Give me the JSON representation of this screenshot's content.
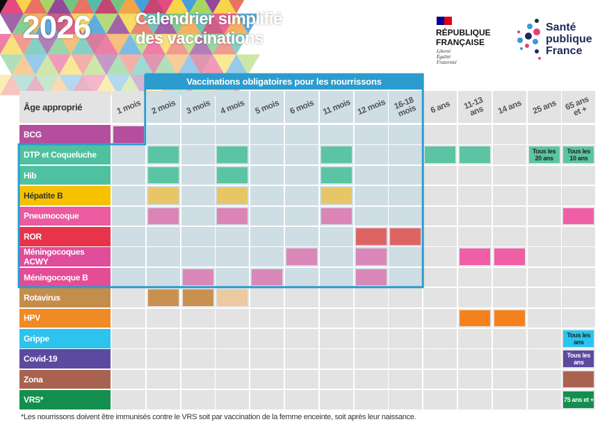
{
  "header": {
    "year": "2026",
    "title_lines": [
      "Calendrier simplifié",
      "des vaccinations"
    ]
  },
  "logos": {
    "republique": [
      "RÉPUBLIQUE",
      "FRANÇAISE"
    ],
    "motto": [
      "Liberté",
      "Égalité",
      "Fraternité"
    ],
    "spf": [
      "Santé",
      "publique",
      "France"
    ]
  },
  "table": {
    "banner": "Vaccinations obligatoires pour les nourrissons",
    "age_header": "Âge approprié",
    "columns": [
      "1 mois",
      "2 mois",
      "3 mois",
      "4 mois",
      "5 mois",
      "6 mois",
      "11 mois",
      "12 mois",
      "16-18 mois",
      "6 ans",
      "11-13 ans",
      "14 ans",
      "25 ans",
      "65 ans et +"
    ],
    "rows": [
      {
        "name": "BCG",
        "color": "#b44e9d",
        "cells": [
          {
            "color": "#b44e9d"
          },
          null,
          null,
          null,
          null,
          null,
          null,
          null,
          null,
          null,
          null,
          null,
          null,
          null
        ]
      },
      {
        "name": "DTP et Coqueluche",
        "color": "#4fc1a0",
        "cells": [
          null,
          {
            "color": "#5bc4a3"
          },
          null,
          {
            "color": "#5bc4a3"
          },
          null,
          null,
          {
            "color": "#5bc4a3"
          },
          null,
          null,
          {
            "color": "#5bc4a3"
          },
          {
            "color": "#5bc4a3"
          },
          null,
          {
            "color": "#5bc4a3",
            "text": "Tous les 20 ans"
          },
          {
            "color": "#5bc4a3",
            "text": "Tous les 10 ans"
          }
        ]
      },
      {
        "name": "Hib",
        "color": "#4fc1a0",
        "cells": [
          null,
          {
            "color": "#5bc4a3"
          },
          null,
          {
            "color": "#5bc4a3"
          },
          null,
          null,
          {
            "color": "#5bc4a3"
          },
          null,
          null,
          null,
          null,
          null,
          null,
          null
        ]
      },
      {
        "name": "Hépatite B",
        "color": "#f7c100",
        "label_text_color": "#333333",
        "cells": [
          null,
          {
            "color": "#e8c567"
          },
          null,
          {
            "color": "#e8c567"
          },
          null,
          null,
          {
            "color": "#e8c567"
          },
          null,
          null,
          null,
          null,
          null,
          null,
          null
        ]
      },
      {
        "name": "Pneumocoque",
        "color": "#ec5aa0",
        "cells": [
          null,
          {
            "color": "#da85b6"
          },
          null,
          {
            "color": "#da85b6"
          },
          null,
          null,
          {
            "color": "#da85b6"
          },
          null,
          null,
          null,
          null,
          null,
          null,
          {
            "color": "#ee5fa6"
          }
        ]
      },
      {
        "name": "ROR",
        "color": "#e8334a",
        "cells": [
          null,
          null,
          null,
          null,
          null,
          null,
          null,
          {
            "color": "#de6464"
          },
          {
            "color": "#de6464"
          },
          null,
          null,
          null,
          null,
          null
        ]
      },
      {
        "name": "Méningocoques ACWY",
        "color": "#e04d9a",
        "cells": [
          null,
          null,
          null,
          null,
          null,
          {
            "color": "#d988b9"
          },
          null,
          {
            "color": "#d988b9"
          },
          null,
          null,
          {
            "color": "#ee5fa6"
          },
          {
            "color": "#ee5fa6"
          },
          null,
          null
        ]
      },
      {
        "name": "Méningocoque B",
        "color": "#e44c96",
        "cells": [
          null,
          null,
          {
            "color": "#d988b9"
          },
          null,
          {
            "color": "#d988b9"
          },
          null,
          null,
          {
            "color": "#d988b9"
          },
          null,
          null,
          null,
          null,
          null,
          null
        ]
      },
      {
        "name": "Rotavirus",
        "color": "#c58d4c",
        "cells": [
          null,
          {
            "color": "#c99150"
          },
          {
            "color": "#c99150"
          },
          {
            "color": "#ecc9a0"
          },
          null,
          null,
          null,
          null,
          null,
          null,
          null,
          null,
          null,
          null
        ]
      },
      {
        "name": "HPV",
        "color": "#f08a24",
        "cells": [
          null,
          null,
          null,
          null,
          null,
          null,
          null,
          null,
          null,
          null,
          {
            "color": "#f5821f"
          },
          {
            "color": "#f5821f"
          },
          null,
          null
        ]
      },
      {
        "name": "Grippe",
        "color": "#2ec2ee",
        "cells": [
          null,
          null,
          null,
          null,
          null,
          null,
          null,
          null,
          null,
          null,
          null,
          null,
          null,
          {
            "color": "#29c4ef",
            "text": "Tous les ans"
          }
        ]
      },
      {
        "name": "Covid-19",
        "color": "#5b4aa0",
        "cells": [
          null,
          null,
          null,
          null,
          null,
          null,
          null,
          null,
          null,
          null,
          null,
          null,
          null,
          {
            "color": "#5b4aa0",
            "text": "Tous les ans",
            "text_color": "#ffffff"
          }
        ]
      },
      {
        "name": "Zona",
        "color": "#a9624f",
        "cells": [
          null,
          null,
          null,
          null,
          null,
          null,
          null,
          null,
          null,
          null,
          null,
          null,
          null,
          {
            "color": "#a9624f"
          }
        ]
      },
      {
        "name": "VRS*",
        "color": "#138e4e",
        "cells": [
          null,
          null,
          null,
          null,
          null,
          null,
          null,
          null,
          null,
          null,
          null,
          null,
          null,
          {
            "color": "#138e4e",
            "text": "75 ans et +",
            "text_color": "#ffffff"
          }
        ]
      }
    ]
  },
  "footnote": "*Les nourrissons doivent être immunisés contre le VRS soit par vaccination de la femme enceinte, soit après leur naissance."
}
